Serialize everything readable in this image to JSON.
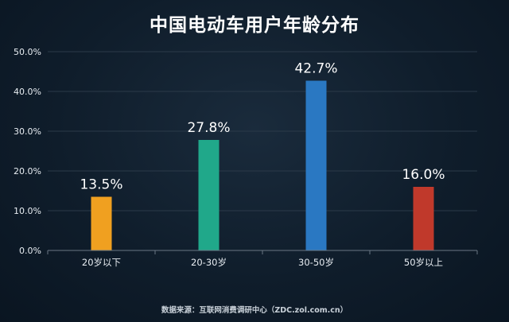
{
  "chart_data": {
    "type": "bar",
    "title": "中国电动车用户年龄分布",
    "categories": [
      "20岁以下",
      "20-30岁",
      "30-50岁",
      "50岁以上"
    ],
    "values": [
      13.5,
      27.8,
      42.7,
      16.0
    ],
    "data_labels": [
      "13.5%",
      "27.8%",
      "42.7%",
      "16.0%"
    ],
    "colors": [
      "#f0a020",
      "#20a88a",
      "#2a78c2",
      "#c0392b"
    ],
    "y_ticks": [
      "0.0%",
      "10.0%",
      "20.0%",
      "30.0%",
      "40.0%",
      "50.0%"
    ],
    "ylim": [
      0,
      50
    ],
    "grid": true,
    "source": "数据来源：互联网消费调研中心（ZDC.zol.com.cn）"
  }
}
